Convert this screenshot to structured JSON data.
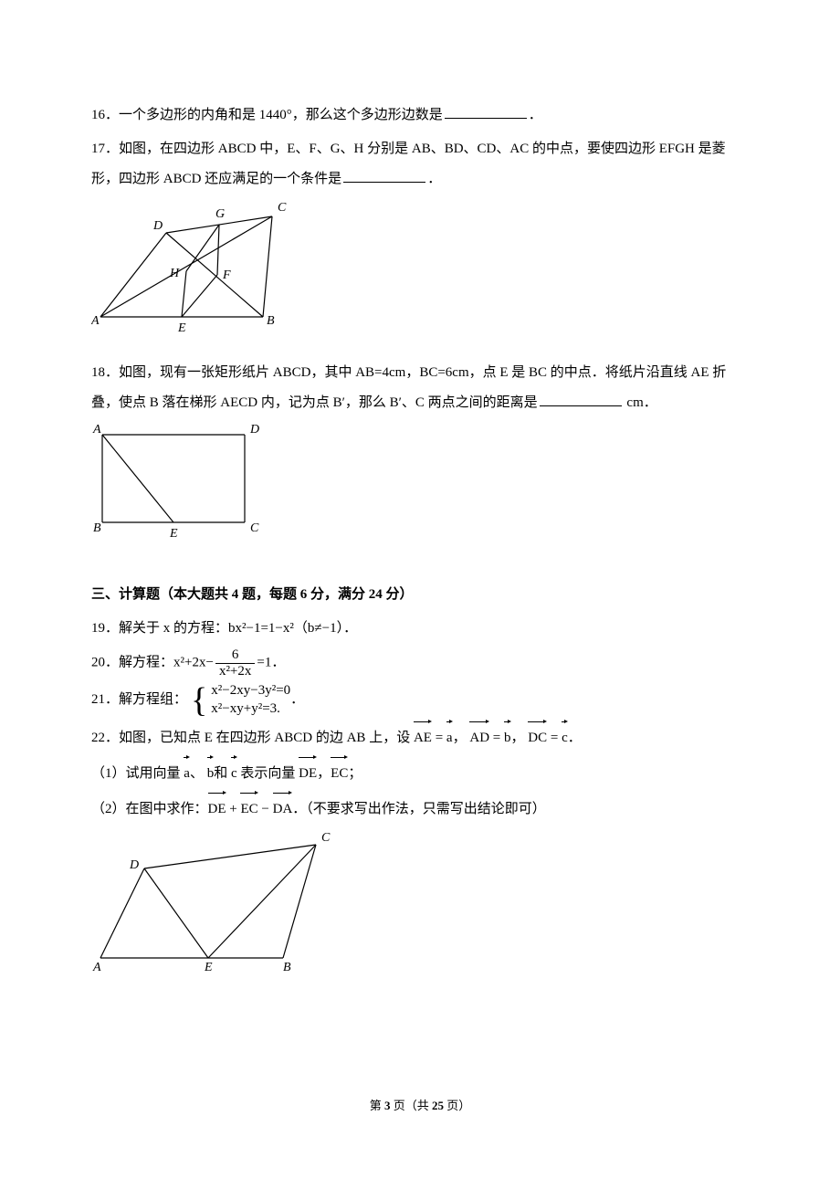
{
  "q16": {
    "num": "16．",
    "text_a": "一个多边形的内角和是 1440°，那么这个多边形边数是",
    "suffix": "．"
  },
  "q17": {
    "num": "17．",
    "text_a": "如图，在四边形 ABCD 中，E、F、G、H 分别是 AB、BD、CD、AC 的中点，要使四边形 EFGH 是菱形，四边形 ABCD 还应满足的一个条件是",
    "suffix": "．",
    "fig": {
      "A": [
        10,
        128
      ],
      "B": [
        188,
        128
      ],
      "C": [
        198,
        18
      ],
      "D": [
        82,
        36
      ],
      "E": [
        99,
        128
      ],
      "F": [
        138,
        82
      ],
      "G": [
        140,
        27
      ],
      "H": [
        104,
        78
      ],
      "label_offsets": {
        "A": [
          -10,
          8
        ],
        "B": [
          4,
          8
        ],
        "C": [
          6,
          -6
        ],
        "D": [
          -14,
          -4
        ],
        "E": [
          -4,
          16
        ],
        "F": [
          6,
          4
        ],
        "G": [
          -4,
          -8
        ],
        "H": [
          -18,
          6
        ]
      },
      "stroke": "#000",
      "stroke_width": 1.2,
      "font_size": 14
    }
  },
  "q18": {
    "num": "18．",
    "text_a": "如图，现有一张矩形纸片 ABCD，其中 AB=4cm，BC=6cm，点 E 是 BC 的中点．将纸片沿直线 AE 折叠，使点 B 落在梯形 AECD 内，记为点 B′，那么 B′、C 两点之间的距离是",
    "suffix": " cm．",
    "fig": {
      "A": [
        12,
        12
      ],
      "D": [
        168,
        12
      ],
      "B": [
        12,
        108
      ],
      "C": [
        168,
        108
      ],
      "E": [
        90,
        108
      ],
      "label_offsets": {
        "A": [
          -10,
          -2
        ],
        "D": [
          6,
          -2
        ],
        "B": [
          -10,
          10
        ],
        "C": [
          6,
          10
        ],
        "E": [
          -4,
          16
        ]
      },
      "stroke": "#000",
      "stroke_width": 1.2,
      "font_size": 14
    }
  },
  "section3": "三、计算题（本大题共 4 题，每题 6 分，满分 24 分）",
  "q19": {
    "num": "19．",
    "text": "解关于 x 的方程：bx²−1=1−x²（b≠−1）．"
  },
  "q20": {
    "num": "20．",
    "prefix": "解方程：x²+2x−",
    "frac_num": "6",
    "frac_den": "x²+2x",
    "suffix": "=1．"
  },
  "q21": {
    "num": "21．",
    "prefix": "解方程组：",
    "row1": "x²−2xy−3y²=0",
    "row2": "x²−xy+y²=3.",
    "suffix": "．"
  },
  "q22": {
    "num": "22．",
    "line1_a": "如图，已知点 E 在四边形 ABCD 的边 AB 上，设 ",
    "AE": "AE",
    "eq1": " = ",
    "a": "a",
    "comma1": "， ",
    "AD": "AD",
    "eq2": " = ",
    "b": "b",
    "comma2": "， ",
    "DC": "DC",
    "eq3": " = ",
    "c": "c",
    "period1": "．",
    "line2_a": "（1）试用向量 ",
    "a2": "a",
    "sep1": "、 ",
    "b2": "b",
    "sep2": "和 ",
    "c2": "c",
    "line2_b": " 表示向量 ",
    "DE": "DE",
    "comma3": "，",
    "EC": "EC",
    "semi": "；",
    "line3_a": "（2）在图中求作：",
    "DE2": "DE",
    "plus": " + ",
    "EC2": "EC",
    "minus": " − ",
    "DA": "DA",
    "line3_b": "．（不要求写出作法，只需写出结论即可）",
    "fig": {
      "A": [
        10,
        140
      ],
      "B": [
        210,
        140
      ],
      "E": [
        128,
        140
      ],
      "D": [
        58,
        42
      ],
      "C": [
        246,
        16
      ],
      "label_offsets": {
        "A": [
          -8,
          14
        ],
        "B": [
          0,
          14
        ],
        "E": [
          -4,
          14
        ],
        "D": [
          -16,
          0
        ],
        "C": [
          6,
          -4
        ]
      },
      "stroke": "#000",
      "stroke_width": 1.2,
      "font_size": 14
    }
  },
  "footer": {
    "a": "第 ",
    "pg": "3",
    "b": " 页（共 ",
    "total": "25",
    "c": " 页）"
  }
}
